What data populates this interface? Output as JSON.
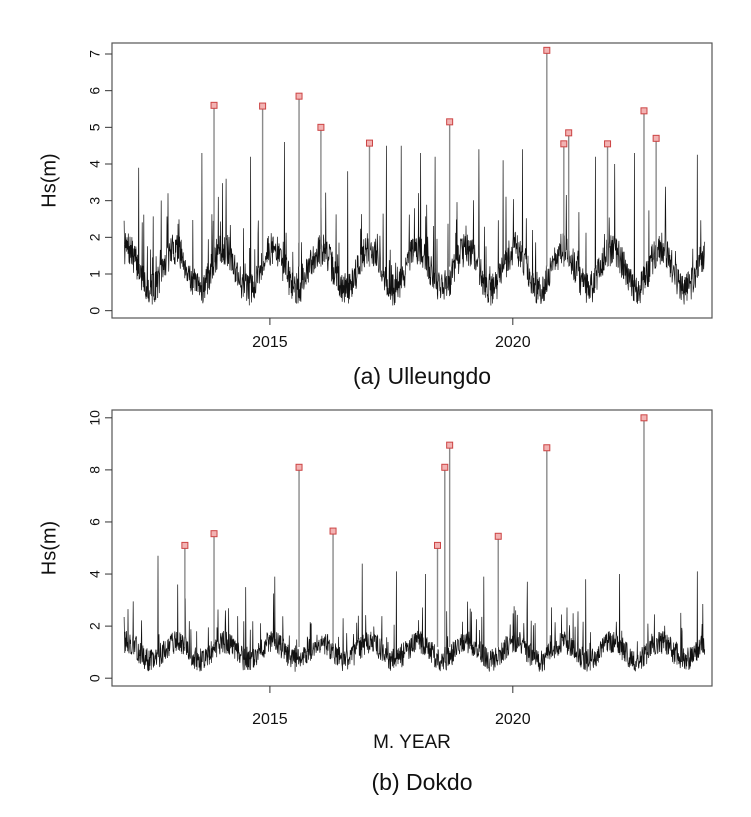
{
  "chart_data": [
    {
      "type": "line",
      "caption": "(a) Ulleungdo",
      "ylabel": "Hs(m)",
      "xlabel": "",
      "xlim": [
        2011.75,
        2024.1
      ],
      "ylim": [
        -0.2,
        7.3
      ],
      "yticks": [
        0,
        1,
        2,
        3,
        4,
        5,
        6,
        7
      ],
      "xticks": [
        2015,
        2020
      ],
      "baseline": {
        "start": 2012.0,
        "end": 2023.95,
        "mean": 1.0,
        "amplitude": 0.55,
        "noise": 0.45,
        "seed": 7
      },
      "series": [
        {
          "values": [
            [
              2012.0,
              2.45
            ],
            [
              2012.3,
              3.9
            ],
            [
              2012.9,
              3.2
            ],
            [
              2013.6,
              4.3
            ],
            [
              2014.1,
              3.6
            ],
            [
              2014.6,
              4.2
            ],
            [
              2015.3,
              4.6
            ],
            [
              2016.6,
              3.8
            ],
            [
              2017.4,
              4.5
            ],
            [
              2017.7,
              4.5
            ],
            [
              2018.1,
              4.3
            ],
            [
              2018.4,
              4.2
            ],
            [
              2019.3,
              4.4
            ],
            [
              2019.8,
              4.1
            ],
            [
              2020.2,
              4.4
            ],
            [
              2021.7,
              4.2
            ],
            [
              2022.1,
              4.0
            ],
            [
              2022.5,
              4.3
            ],
            [
              2023.8,
              4.25
            ]
          ]
        }
      ],
      "peaks": [
        {
          "x": 2013.85,
          "y": 5.6
        },
        {
          "x": 2014.85,
          "y": 5.58
        },
        {
          "x": 2015.6,
          "y": 5.85
        },
        {
          "x": 2016.05,
          "y": 5.0
        },
        {
          "x": 2017.05,
          "y": 4.57
        },
        {
          "x": 2018.7,
          "y": 5.15
        },
        {
          "x": 2020.7,
          "y": 7.1
        },
        {
          "x": 2021.05,
          "y": 4.55
        },
        {
          "x": 2021.15,
          "y": 4.85
        },
        {
          "x": 2021.95,
          "y": 4.55
        },
        {
          "x": 2022.7,
          "y": 5.45
        },
        {
          "x": 2022.95,
          "y": 4.7
        }
      ],
      "peak_color": "#cc4444"
    },
    {
      "type": "line",
      "caption": "(b) Dokdo",
      "ylabel": "Hs(m)",
      "xlabel": "M. YEAR",
      "xlim": [
        2011.75,
        2024.1
      ],
      "ylim": [
        -0.3,
        10.3
      ],
      "yticks": [
        0,
        2,
        4,
        6,
        8,
        10
      ],
      "xticks": [
        2015,
        2020
      ],
      "baseline": {
        "start": 2012.0,
        "end": 2023.95,
        "mean": 0.9,
        "amplitude": 0.35,
        "noise": 0.45,
        "seed": 13
      },
      "series": [
        {
          "values": [
            [
              2012.0,
              2.35
            ],
            [
              2012.7,
              4.7
            ],
            [
              2013.1,
              3.6
            ],
            [
              2014.5,
              3.5
            ],
            [
              2015.1,
              3.9
            ],
            [
              2016.9,
              4.4
            ],
            [
              2017.6,
              4.1
            ],
            [
              2018.2,
              4.0
            ],
            [
              2019.4,
              3.9
            ],
            [
              2020.3,
              3.7
            ],
            [
              2021.5,
              3.8
            ],
            [
              2022.2,
              4.0
            ],
            [
              2023.8,
              4.1
            ]
          ]
        }
      ],
      "peaks": [
        {
          "x": 2013.25,
          "y": 5.1
        },
        {
          "x": 2013.85,
          "y": 5.55
        },
        {
          "x": 2015.6,
          "y": 8.1
        },
        {
          "x": 2016.3,
          "y": 5.65
        },
        {
          "x": 2018.45,
          "y": 5.1
        },
        {
          "x": 2018.6,
          "y": 8.1
        },
        {
          "x": 2018.7,
          "y": 8.95
        },
        {
          "x": 2019.7,
          "y": 5.45
        },
        {
          "x": 2020.7,
          "y": 8.85
        },
        {
          "x": 2022.7,
          "y": 10.0
        }
      ],
      "peak_color": "#cc4444"
    }
  ]
}
